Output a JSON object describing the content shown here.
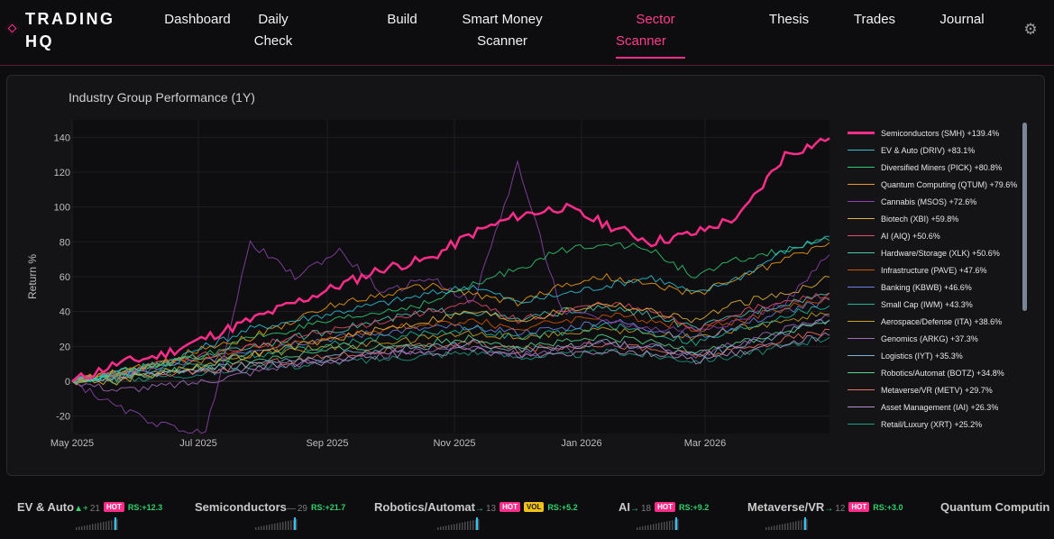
{
  "header": {
    "logo_line1": "TRADING",
    "logo_line2": "HQ",
    "nav": [
      {
        "line1": "Dashboard",
        "line2": ""
      },
      {
        "line1": "Daily",
        "line2": "Check"
      },
      {
        "line1": "Build",
        "line2": ""
      },
      {
        "line1": "Smart Money",
        "line2": "Scanner"
      },
      {
        "line1": "Sector",
        "line2": "Scanner"
      },
      {
        "line1": "Thesis",
        "line2": ""
      },
      {
        "line1": "Trades",
        "line2": ""
      },
      {
        "line1": "Journal",
        "line2": ""
      }
    ],
    "active_nav": "Sector Scanner",
    "settings_icon": "gear-icon"
  },
  "colors": {
    "accent": "#ff2d8a",
    "background": "#0d0d0f",
    "panel": "#141416",
    "positive": "#2fd36b",
    "vol_badge": "#f2c21a"
  },
  "chart_data": {
    "type": "line",
    "title": "Industry Group Performance (1Y)",
    "ylabel": "Return %",
    "xlabel": "",
    "ylim": [
      -30,
      150
    ],
    "yticks": [
      -20,
      0,
      20,
      40,
      60,
      80,
      100,
      120,
      140
    ],
    "xticks": [
      "May 2025",
      "Jul 2025",
      "Sep 2025",
      "Nov 2025",
      "Jan 2026",
      "Mar 2026"
    ],
    "x_start": "2025-05-01",
    "x_end": "2026-04-17",
    "grid": true,
    "legend_position": "right",
    "series": [
      {
        "name": "Semiconductors (SMH) +139.4%",
        "color": "#ff2d8a",
        "final": 139.4,
        "values": [
          0,
          10,
          15,
          25,
          35,
          45,
          55,
          65,
          70,
          85,
          95,
          100,
          90,
          80,
          85,
          95,
          130,
          139.4
        ]
      },
      {
        "name": "EV & Auto (DRIV) +83.1%",
        "color": "#2bc3d8",
        "final": 83.1,
        "values": [
          0,
          5,
          10,
          20,
          30,
          35,
          40,
          45,
          50,
          55,
          45,
          50,
          55,
          60,
          50,
          60,
          75,
          83.1
        ]
      },
      {
        "name": "Diversified Miners (PICK) +80.8%",
        "color": "#2ecc71",
        "final": 80.8,
        "values": [
          0,
          5,
          10,
          15,
          25,
          30,
          35,
          40,
          45,
          55,
          65,
          75,
          80,
          75,
          60,
          70,
          75,
          80.8
        ]
      },
      {
        "name": "Quantum Computing (QTUM) +79.6%",
        "color": "#f39c12",
        "final": 79.6,
        "values": [
          0,
          5,
          10,
          20,
          25,
          35,
          45,
          50,
          55,
          50,
          45,
          55,
          60,
          55,
          50,
          60,
          70,
          79.6
        ]
      },
      {
        "name": "Cannabis (MSOS) +72.6%",
        "color": "#8e44ad",
        "final": 72.6,
        "values": [
          0,
          -15,
          -25,
          -30,
          80,
          60,
          75,
          50,
          60,
          45,
          125,
          40,
          35,
          30,
          30,
          35,
          45,
          72.6
        ]
      },
      {
        "name": "Biotech (XBI) +59.8%",
        "color": "#e5b33a",
        "final": 59.8,
        "values": [
          0,
          0,
          5,
          10,
          15,
          20,
          25,
          30,
          35,
          40,
          35,
          40,
          45,
          40,
          35,
          45,
          50,
          59.8
        ]
      },
      {
        "name": "AI (AIQ) +50.6%",
        "color": "#e74c6c",
        "final": 50.6,
        "values": [
          0,
          5,
          10,
          15,
          20,
          25,
          30,
          35,
          40,
          45,
          35,
          40,
          45,
          40,
          30,
          40,
          45,
          50.6
        ]
      },
      {
        "name": "Hardware/Storage (XLK) +50.6%",
        "color": "#48c9b0",
        "final": 50.6,
        "values": [
          0,
          5,
          10,
          15,
          20,
          25,
          30,
          35,
          40,
          40,
          35,
          40,
          42,
          38,
          30,
          38,
          45,
          50.6
        ]
      },
      {
        "name": "Infrastructure (PAVE) +47.6%",
        "color": "#d35400",
        "final": 47.6,
        "values": [
          0,
          5,
          10,
          15,
          20,
          22,
          25,
          30,
          32,
          35,
          30,
          35,
          38,
          35,
          30,
          35,
          42,
          47.6
        ]
      },
      {
        "name": "Banking (KBWB) +46.6%",
        "color": "#6c7fe0",
        "final": 46.6,
        "values": [
          0,
          5,
          8,
          12,
          18,
          22,
          25,
          28,
          30,
          32,
          28,
          30,
          35,
          30,
          25,
          32,
          40,
          46.6
        ]
      },
      {
        "name": "Small Cap (IWM) +43.3%",
        "color": "#1abc9c",
        "final": 43.3,
        "values": [
          0,
          3,
          6,
          10,
          15,
          18,
          22,
          25,
          28,
          30,
          25,
          28,
          32,
          28,
          22,
          30,
          38,
          43.3
        ]
      },
      {
        "name": "Aerospace/Defense (ITA) +38.6%",
        "color": "#c9a227",
        "final": 38.6,
        "values": [
          0,
          5,
          10,
          12,
          15,
          18,
          20,
          22,
          25,
          28,
          25,
          28,
          30,
          28,
          25,
          30,
          35,
          38.6
        ]
      },
      {
        "name": "Genomics (ARKG) +37.3%",
        "color": "#a569bd",
        "final": 37.3,
        "values": [
          0,
          -5,
          -3,
          0,
          5,
          10,
          12,
          15,
          18,
          20,
          15,
          18,
          22,
          20,
          15,
          22,
          30,
          37.3
        ]
      },
      {
        "name": "Logistics (IYT) +35.3%",
        "color": "#7fb3d5",
        "final": 35.3,
        "values": [
          0,
          3,
          5,
          8,
          10,
          12,
          15,
          18,
          20,
          22,
          18,
          20,
          22,
          20,
          15,
          20,
          28,
          35.3
        ]
      },
      {
        "name": "Robotics/Automat (BOTZ) +34.8%",
        "color": "#58d68d",
        "final": 34.8,
        "values": [
          0,
          2,
          5,
          8,
          12,
          15,
          18,
          20,
          22,
          25,
          20,
          22,
          25,
          22,
          18,
          22,
          28,
          34.8
        ]
      },
      {
        "name": "Metaverse/VR (METV) +29.7%",
        "color": "#ec7063",
        "final": 29.7,
        "values": [
          0,
          2,
          4,
          6,
          10,
          12,
          15,
          18,
          20,
          22,
          18,
          20,
          22,
          18,
          15,
          18,
          24,
          29.7
        ]
      },
      {
        "name": "Asset Management (IAI) +26.3%",
        "color": "#bb8fce",
        "final": 26.3,
        "values": [
          0,
          2,
          4,
          6,
          8,
          10,
          12,
          15,
          16,
          18,
          15,
          16,
          18,
          16,
          12,
          16,
          22,
          26.3
        ]
      },
      {
        "name": "Retail/Luxury (XRT) +25.2%",
        "color": "#16a085",
        "final": 25.2,
        "values": [
          0,
          1,
          3,
          5,
          7,
          9,
          11,
          13,
          15,
          17,
          14,
          15,
          17,
          15,
          12,
          15,
          20,
          25.2
        ]
      }
    ]
  },
  "ticker": [
    {
      "name": "EV & Auto",
      "arrow": "▲+",
      "count": "21",
      "hot": "HOT",
      "vol": "",
      "rs": "RS:+12.3",
      "arrow_color": "#2fd36b"
    },
    {
      "name": "Semiconductors",
      "arrow": "—",
      "count": "29",
      "hot": "",
      "vol": "",
      "rs": "RS:+21.7",
      "arrow_color": "#7b7b7b"
    },
    {
      "name": "Robotics/Automat",
      "arrow": "→",
      "count": "13",
      "hot": "HOT",
      "vol": "VOL",
      "rs": "RS:+5.2",
      "arrow_color": "#2fd36b"
    },
    {
      "name": "AI",
      "arrow": "→",
      "count": "18",
      "hot": "HOT",
      "vol": "",
      "rs": "RS:+9.2",
      "arrow_color": "#2fd36b"
    },
    {
      "name": "Metaverse/VR",
      "arrow": "→",
      "count": "12",
      "hot": "HOT",
      "vol": "",
      "rs": "RS:+3.0",
      "arrow_color": "#2fd36b"
    },
    {
      "name": "Quantum Computin",
      "arrow": "",
      "count": "",
      "hot": "",
      "vol": "",
      "rs": "",
      "arrow_color": "#7b7b7b"
    }
  ]
}
